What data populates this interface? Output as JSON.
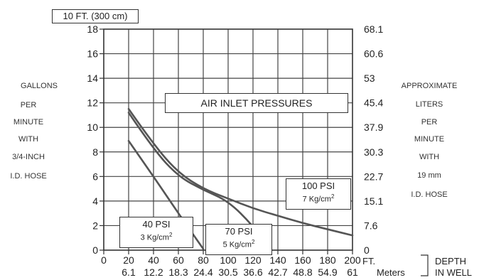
{
  "chart_data": {
    "type": "line",
    "title": "AIR INLET PRESSURES",
    "top_label": "10 FT. (300 cm)",
    "ylabel_left": [
      "GALLONS",
      "PER",
      "MINUTE",
      "WITH",
      "3/4-INCH",
      "I.D. HOSE"
    ],
    "ylabel_right": [
      "APPROXIMATE",
      "LITERS",
      "PER",
      "MINUTE",
      "WITH",
      "19 mm",
      "I.D. HOSE"
    ],
    "xlabel": [
      "DEPTH",
      "IN WELL"
    ],
    "x_unit_ft": "FT.",
    "x_unit_m": "Meters",
    "xlim": [
      0,
      200
    ],
    "ylim": [
      0,
      18
    ],
    "grid": true,
    "x_ticks_ft": [
      "0",
      "20",
      "40",
      "60",
      "80",
      "100",
      "120",
      "140",
      "160",
      "180",
      "200"
    ],
    "x_ticks_m": [
      "6.1",
      "12.2",
      "18.3",
      "24.4",
      "30.5",
      "36.6",
      "42.7",
      "48.8",
      "54.9",
      "61"
    ],
    "y_ticks_left": [
      "0",
      "2",
      "4",
      "6",
      "8",
      "10",
      "12",
      "14",
      "16",
      "18"
    ],
    "y_ticks_right": [
      "0",
      "7.6",
      "15.1",
      "22.7",
      "30.3",
      "37.9",
      "45.4",
      "53",
      "60.6",
      "68.1"
    ],
    "series": [
      {
        "name": "40 PSI",
        "name_metric": "3 Kg/cm",
        "x": [
          20,
          40,
          60,
          80
        ],
        "y": [
          8.9,
          6.0,
          3.0,
          0.1
        ]
      },
      {
        "name": "70 PSI",
        "name_metric": "5 Kg/cm",
        "x": [
          20,
          40,
          60,
          80,
          100,
          120,
          133
        ],
        "y": [
          11.2,
          8.2,
          6.0,
          4.9,
          4.0,
          2.0,
          0.1
        ]
      },
      {
        "name": "100 PSI",
        "name_metric": "7 Kg/cm",
        "x": [
          20,
          40,
          60,
          80,
          100,
          120,
          140,
          160,
          180,
          200
        ],
        "y": [
          11.5,
          8.6,
          6.3,
          5.0,
          4.2,
          3.4,
          2.8,
          2.2,
          1.7,
          1.2
        ]
      }
    ],
    "sup_exponent": "2"
  }
}
